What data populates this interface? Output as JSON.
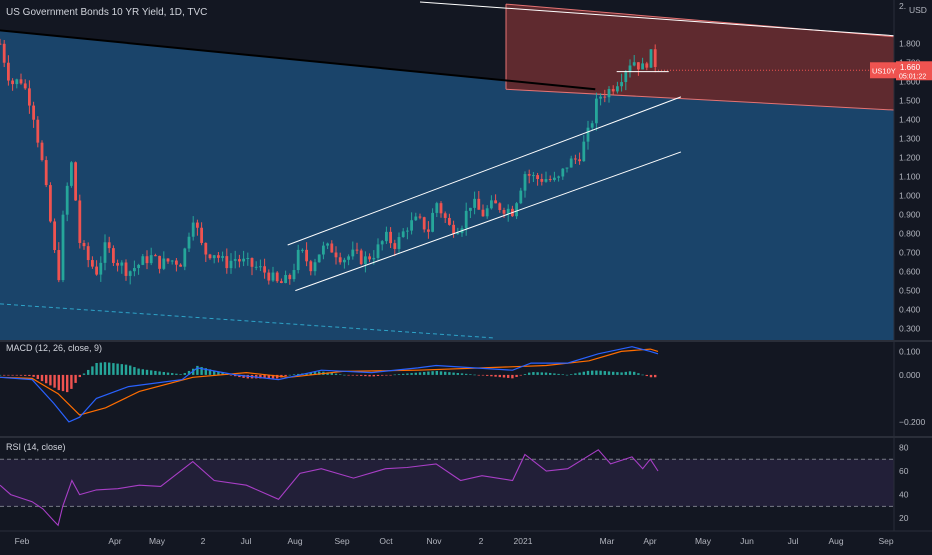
{
  "chart_data": {
    "type": "candlestick",
    "title": "US Government Bonds 10 YR Yield, 1D, TVC",
    "currency_label": "USD",
    "price_axis": {
      "ticks": [
        "1.800",
        "1.700",
        "1.600",
        "1.500",
        "1.400",
        "1.300",
        "1.200",
        "1.100",
        "1.000",
        "0.900",
        "0.800",
        "0.700",
        "0.600",
        "0.500",
        "0.400",
        "0.300"
      ],
      "top_tick_partial": "2.",
      "ylim": [
        0.24,
        2.03
      ]
    },
    "time_axis": {
      "labels": [
        "Feb",
        "Apr",
        "May",
        "2",
        "Jul",
        "Aug",
        "Sep",
        "Oct",
        "Nov",
        "2",
        "2021",
        "Mar",
        "Apr",
        "May",
        "Jun",
        "Jul",
        "Aug",
        "Sep"
      ]
    },
    "last_price": {
      "symbol": "US10Y",
      "value": "1.660",
      "countdown": "05:01:22"
    },
    "price_series": [
      {
        "date": "2020-01-31",
        "close": 1.8
      },
      {
        "date": "2020-02-07",
        "close": 1.59
      },
      {
        "date": "2020-02-14",
        "close": 1.61
      },
      {
        "date": "2020-02-21",
        "close": 1.47
      },
      {
        "date": "2020-02-28",
        "close": 1.15
      },
      {
        "date": "2020-03-06",
        "close": 0.74
      },
      {
        "date": "2020-03-09",
        "close": 0.54
      },
      {
        "date": "2020-03-13",
        "close": 0.96
      },
      {
        "date": "2020-03-18",
        "close": 1.18
      },
      {
        "date": "2020-03-23",
        "close": 0.76
      },
      {
        "date": "2020-03-27",
        "close": 0.68
      },
      {
        "date": "2020-04-03",
        "close": 0.6
      },
      {
        "date": "2020-04-09",
        "close": 0.73
      },
      {
        "date": "2020-04-17",
        "close": 0.65
      },
      {
        "date": "2020-04-24",
        "close": 0.6
      },
      {
        "date": "2020-05-01",
        "close": 0.64
      },
      {
        "date": "2020-05-08",
        "close": 0.68
      },
      {
        "date": "2020-05-15",
        "close": 0.64
      },
      {
        "date": "2020-05-22",
        "close": 0.66
      },
      {
        "date": "2020-05-29",
        "close": 0.65
      },
      {
        "date": "2020-06-05",
        "close": 0.9
      },
      {
        "date": "2020-06-12",
        "close": 0.7
      },
      {
        "date": "2020-06-19",
        "close": 0.7
      },
      {
        "date": "2020-06-26",
        "close": 0.64
      },
      {
        "date": "2020-07-03",
        "close": 0.67
      },
      {
        "date": "2020-07-10",
        "close": 0.64
      },
      {
        "date": "2020-07-17",
        "close": 0.62
      },
      {
        "date": "2020-07-24",
        "close": 0.59
      },
      {
        "date": "2020-07-31",
        "close": 0.53
      },
      {
        "date": "2020-08-07",
        "close": 0.56
      },
      {
        "date": "2020-08-14",
        "close": 0.71
      },
      {
        "date": "2020-08-21",
        "close": 0.63
      },
      {
        "date": "2020-08-28",
        "close": 0.72
      },
      {
        "date": "2020-09-04",
        "close": 0.72
      },
      {
        "date": "2020-09-11",
        "close": 0.67
      },
      {
        "date": "2020-09-18",
        "close": 0.69
      },
      {
        "date": "2020-09-25",
        "close": 0.66
      },
      {
        "date": "2020-10-02",
        "close": 0.7
      },
      {
        "date": "2020-10-09",
        "close": 0.78
      },
      {
        "date": "2020-10-16",
        "close": 0.74
      },
      {
        "date": "2020-10-23",
        "close": 0.84
      },
      {
        "date": "2020-10-30",
        "close": 0.87
      },
      {
        "date": "2020-11-06",
        "close": 0.82
      },
      {
        "date": "2020-11-11",
        "close": 0.97
      },
      {
        "date": "2020-11-20",
        "close": 0.83
      },
      {
        "date": "2020-11-27",
        "close": 0.84
      },
      {
        "date": "2020-12-04",
        "close": 0.97
      },
      {
        "date": "2020-12-11",
        "close": 0.9
      },
      {
        "date": "2020-12-18",
        "close": 0.95
      },
      {
        "date": "2020-12-24",
        "close": 0.94
      },
      {
        "date": "2020-12-31",
        "close": 0.92
      },
      {
        "date": "2021-01-08",
        "close": 1.12
      },
      {
        "date": "2021-01-15",
        "close": 1.09
      },
      {
        "date": "2021-01-22",
        "close": 1.09
      },
      {
        "date": "2021-01-29",
        "close": 1.07
      },
      {
        "date": "2021-02-05",
        "close": 1.17
      },
      {
        "date": "2021-02-12",
        "close": 1.2
      },
      {
        "date": "2021-02-19",
        "close": 1.34
      },
      {
        "date": "2021-02-25",
        "close": 1.52
      },
      {
        "date": "2021-03-05",
        "close": 1.56
      },
      {
        "date": "2021-03-12",
        "close": 1.63
      },
      {
        "date": "2021-03-19",
        "close": 1.72
      },
      {
        "date": "2021-03-26",
        "close": 1.67
      },
      {
        "date": "2021-03-31",
        "close": 1.74
      },
      {
        "date": "2021-04-02",
        "close": 1.72
      },
      {
        "date": "2021-04-05",
        "close": 1.66
      }
    ],
    "trendlines": [
      {
        "kind": "resistance",
        "from": {
          "date": "2020-01-31",
          "price": 1.87
        },
        "to": {
          "date": "2021-02-23",
          "price": 1.56
        },
        "color": "#000000"
      },
      {
        "kind": "channel-upper",
        "from": {
          "date": "2020-08-06",
          "price": 0.74
        },
        "to": {
          "date": "2021-04-20",
          "price": 1.52
        },
        "color": "#ffffff"
      },
      {
        "kind": "channel-lower",
        "from": {
          "date": "2020-08-11",
          "price": 0.5
        },
        "to": {
          "date": "2021-04-20",
          "price": 1.23
        },
        "color": "#ffffff"
      },
      {
        "kind": "horizontal",
        "from": {
          "date": "2021-03-09",
          "price": 1.653
        },
        "to": {
          "date": "2021-04-12",
          "price": 1.653
        },
        "color": "#ffffff"
      },
      {
        "kind": "dashed",
        "from": {
          "date": "2020-01-31",
          "price": 0.43
        },
        "to": {
          "date": "2020-12-20",
          "price": 0.25
        },
        "color": "#2ea3c7"
      },
      {
        "kind": "parallel-top",
        "from": {
          "date": "2020-12-01",
          "price": 2.08
        },
        "to": {
          "date": "2021-10-01",
          "price": 1.82
        },
        "color": "#ffffff"
      }
    ],
    "zones": [
      {
        "kind": "blue-area",
        "color": "#1c4e7a"
      },
      {
        "kind": "red-channel",
        "upper": {
          "from": {
            "date": "2021-01-08",
            "price": 2.0
          },
          "to": {
            "date": "2021-10-01",
            "price": 1.82
          }
        },
        "lower": {
          "from": {
            "date": "2021-01-08",
            "price": 1.555
          },
          "to": {
            "date": "2021-10-01",
            "price": 1.44
          }
        },
        "color": "#9e3a3a"
      }
    ],
    "colors": {
      "up": "#26a69a",
      "down": "#ef5350",
      "background": "#131722",
      "text": "#b2b5be"
    },
    "panels": [
      {
        "name": "MACD",
        "header": "MACD (12, 26, close, 9)",
        "ticks": [
          "0.100",
          "0.000",
          "−0.200"
        ],
        "ylim": [
          -0.26,
          0.14
        ],
        "macd_line": [
          [
            "2020-01-31",
            -0.01
          ],
          [
            "2020-02-21",
            -0.02
          ],
          [
            "2020-03-06",
            -0.12
          ],
          [
            "2020-03-16",
            -0.2
          ],
          [
            "2020-03-23",
            -0.18
          ],
          [
            "2020-04-03",
            -0.1
          ],
          [
            "2020-04-24",
            -0.05
          ],
          [
            "2020-05-29",
            -0.02
          ],
          [
            "2020-06-08",
            0.03
          ],
          [
            "2020-07-03",
            0.0
          ],
          [
            "2020-07-31",
            -0.02
          ],
          [
            "2020-08-28",
            0.02
          ],
          [
            "2020-09-30",
            0.01
          ],
          [
            "2020-10-30",
            0.03
          ],
          [
            "2020-11-11",
            0.04
          ],
          [
            "2020-12-31",
            0.02
          ],
          [
            "2021-01-12",
            0.05
          ],
          [
            "2021-02-05",
            0.05
          ],
          [
            "2021-02-25",
            0.09
          ],
          [
            "2021-03-19",
            0.12
          ],
          [
            "2021-03-31",
            0.1
          ],
          [
            "2021-04-05",
            0.09
          ]
        ],
        "signal_line": [
          [
            "2020-01-31",
            -0.01
          ],
          [
            "2020-02-21",
            -0.015
          ],
          [
            "2020-03-09",
            -0.08
          ],
          [
            "2020-03-23",
            -0.17
          ],
          [
            "2020-04-09",
            -0.14
          ],
          [
            "2020-05-01",
            -0.07
          ],
          [
            "2020-06-05",
            -0.01
          ],
          [
            "2020-07-10",
            0.01
          ],
          [
            "2020-08-07",
            -0.01
          ],
          [
            "2020-09-11",
            0.015
          ],
          [
            "2020-10-30",
            0.02
          ],
          [
            "2020-12-11",
            0.03
          ],
          [
            "2021-01-22",
            0.04
          ],
          [
            "2021-02-19",
            0.06
          ],
          [
            "2021-03-12",
            0.1
          ],
          [
            "2021-03-31",
            0.11
          ],
          [
            "2021-04-05",
            0.1
          ]
        ],
        "colors": {
          "macd": "#2962ff",
          "signal": "#ff6d00",
          "hist_up": "#26a69a",
          "hist_down": "#ef5350"
        }
      },
      {
        "name": "RSI",
        "header": "RSI (14, close)",
        "ticks": [
          "80",
          "60",
          "40",
          "20"
        ],
        "ylim": [
          10,
          88
        ],
        "levels": [
          70,
          30
        ],
        "rsi": [
          [
            "2020-01-31",
            48
          ],
          [
            "2020-02-07",
            40
          ],
          [
            "2020-02-21",
            34
          ],
          [
            "2020-02-28",
            28
          ],
          [
            "2020-03-06",
            18
          ],
          [
            "2020-03-09",
            14
          ],
          [
            "2020-03-12",
            30
          ],
          [
            "2020-03-18",
            52
          ],
          [
            "2020-03-23",
            40
          ],
          [
            "2020-04-03",
            44
          ],
          [
            "2020-04-17",
            45
          ],
          [
            "2020-05-01",
            48
          ],
          [
            "2020-05-15",
            47
          ],
          [
            "2020-06-05",
            68
          ],
          [
            "2020-06-19",
            52
          ],
          [
            "2020-07-10",
            48
          ],
          [
            "2020-07-31",
            36
          ],
          [
            "2020-08-14",
            58
          ],
          [
            "2020-08-28",
            62
          ],
          [
            "2020-09-18",
            54
          ],
          [
            "2020-10-09",
            62
          ],
          [
            "2020-10-23",
            63
          ],
          [
            "2020-11-11",
            66
          ],
          [
            "2020-11-27",
            52
          ],
          [
            "2020-12-11",
            56
          ],
          [
            "2020-12-31",
            52
          ],
          [
            "2021-01-08",
            74
          ],
          [
            "2021-01-22",
            60
          ],
          [
            "2021-02-05",
            62
          ],
          [
            "2021-02-25",
            78
          ],
          [
            "2021-03-05",
            66
          ],
          [
            "2021-03-19",
            72
          ],
          [
            "2021-03-26",
            62
          ],
          [
            "2021-03-31",
            70
          ],
          [
            "2021-04-05",
            60
          ]
        ],
        "color": "#a83ec6"
      }
    ]
  }
}
